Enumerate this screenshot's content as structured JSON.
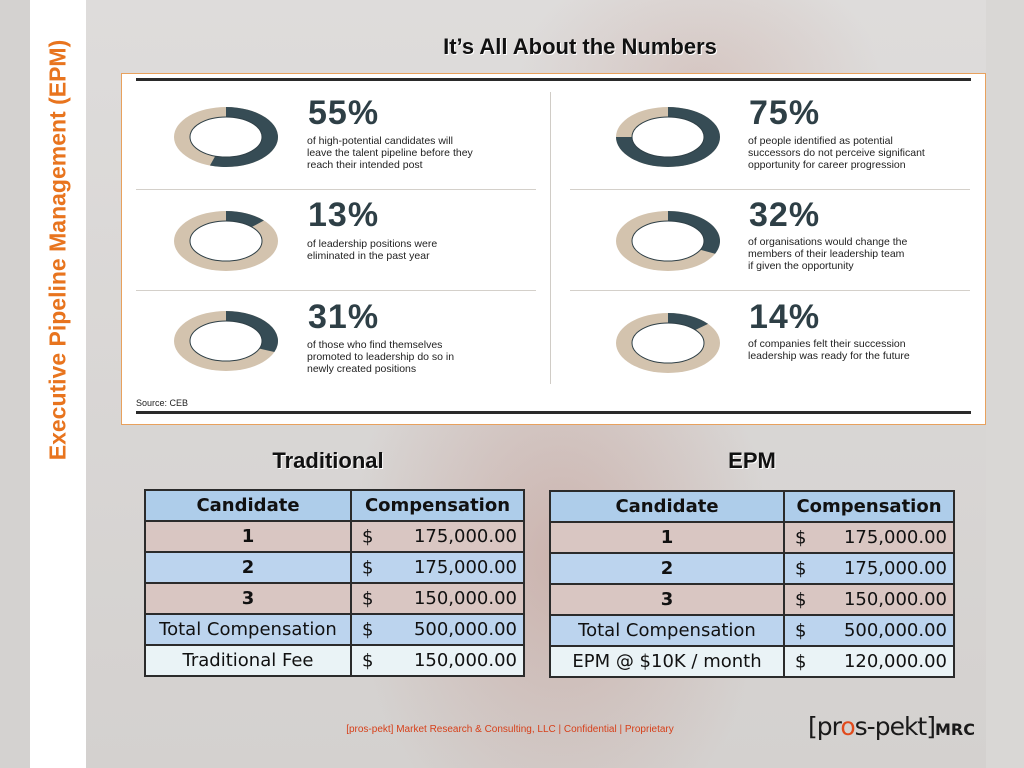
{
  "sidebar_title": "Executive Pipeline Management (EPM)",
  "title": "It’s All About the Numbers",
  "infographic": {
    "stats": [
      {
        "value": "55%",
        "fraction": 0.55,
        "text": [
          "of high-potential candidates will",
          "leave the talent pipeline before they",
          "reach their intended post"
        ]
      },
      {
        "value": "13%",
        "fraction": 0.13,
        "text": [
          "of leadership positions were",
          "eliminated in the past year"
        ]
      },
      {
        "value": "31%",
        "fraction": 0.31,
        "text": [
          "of those who find themselves",
          "promoted to leadership do so in",
          "newly created positions"
        ]
      },
      {
        "value": "75%",
        "fraction": 0.75,
        "text": [
          "of people identified as potential",
          "successors do not perceive significant",
          "opportunity for career progression"
        ]
      },
      {
        "value": "32%",
        "fraction": 0.32,
        "text": [
          "of organisations would change the",
          "members of their leadership team",
          "if given the opportunity"
        ]
      },
      {
        "value": "14%",
        "fraction": 0.14,
        "text": [
          "of companies felt their succession",
          "leadership was ready for the future"
        ]
      }
    ],
    "source": "Source: CEB",
    "colors": {
      "filled": "#364c55",
      "track": "#d3c3ae"
    }
  },
  "traditional": {
    "title": "Traditional",
    "headers": [
      "Candidate",
      "Compensation"
    ],
    "rows": [
      {
        "label": "1",
        "currency": "$",
        "amount": "175,000.00"
      },
      {
        "label": "2",
        "currency": "$",
        "amount": "175,000.00"
      },
      {
        "label": "3",
        "currency": "$",
        "amount": "150,000.00"
      },
      {
        "label": "Total Compensation",
        "currency": "$",
        "amount": "500,000.00"
      },
      {
        "label": "Traditional Fee",
        "currency": "$",
        "amount": "150,000.00"
      }
    ]
  },
  "epm": {
    "title": "EPM",
    "headers": [
      "Candidate",
      "Compensation"
    ],
    "rows": [
      {
        "label": "1",
        "currency": "$",
        "amount": "175,000.00"
      },
      {
        "label": "2",
        "currency": "$",
        "amount": "175,000.00"
      },
      {
        "label": "3",
        "currency": "$",
        "amount": "150,000.00"
      },
      {
        "label": "Total Compensation",
        "currency": "$",
        "amount": "500,000.00"
      },
      {
        "label": "EPM @ $10K / month",
        "currency": "$",
        "amount": "120,000.00"
      }
    ]
  },
  "footer": "[pros-pekt] Market Research & Consulting, LLC | Confidential | Proprietary",
  "logo": {
    "part1": "[pr",
    "o": "o",
    "part2": "s-pekt]",
    "suffix": "MRC"
  },
  "accent_color": "#e8741e"
}
